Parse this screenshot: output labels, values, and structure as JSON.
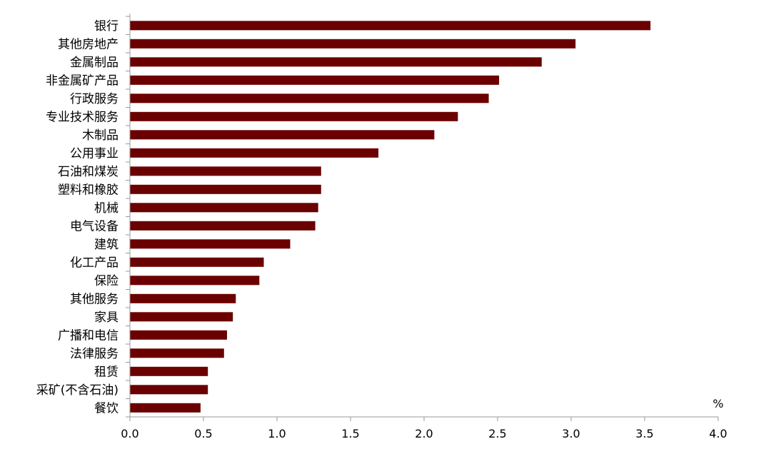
{
  "chart_data": {
    "type": "bar",
    "orientation": "horizontal",
    "title": "",
    "xlabel": "",
    "ylabel": "",
    "unit": "%",
    "bar_color": "#6b0000",
    "axis_color": "#999999",
    "grid": false,
    "legend": "none",
    "xlim": [
      0.0,
      4.0
    ],
    "xticks": [
      "0.0",
      "0.5",
      "1.0",
      "1.5",
      "2.0",
      "2.5",
      "3.0",
      "3.5",
      "4.0"
    ],
    "categories": [
      "银行",
      "其他房地产",
      "金属制品",
      "非金属矿产品",
      "行政服务",
      "专业技术服务",
      "木制品",
      "公用事业",
      "石油和煤炭",
      "塑料和橡胶",
      "机械",
      "电气设备",
      "建筑",
      "化工产品",
      "保险",
      "其他服务",
      "家具",
      "广播和电信",
      "法律服务",
      "租赁",
      "采矿(不含石油)",
      "餐饮"
    ],
    "values": [
      3.54,
      3.03,
      2.8,
      2.51,
      2.44,
      2.23,
      2.07,
      1.69,
      1.3,
      1.3,
      1.28,
      1.26,
      1.09,
      0.91,
      0.88,
      0.72,
      0.7,
      0.66,
      0.64,
      0.53,
      0.53,
      0.48
    ]
  }
}
